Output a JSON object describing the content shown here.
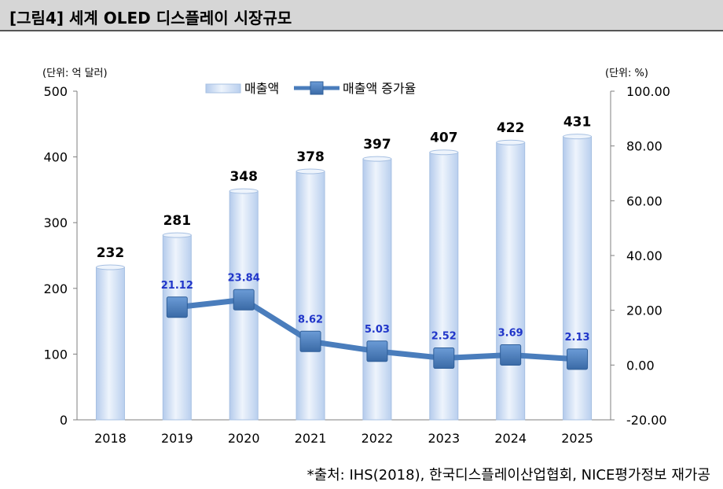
{
  "figure": {
    "title": "[그림4] 세계 OLED 디스플레이 시장규모",
    "source": "*출처: IHS(2018), 한국디스플레이산업협회, NICE평가정보 재가공"
  },
  "colors": {
    "bar_fill": "#c9dbf2",
    "bar_edge": "#a7c0e2",
    "line": "#4a7dbc",
    "marker": "#3f72b0",
    "label_blue": "#2035c9"
  },
  "chart_data": {
    "type": "bar",
    "categories": [
      "2018",
      "2019",
      "2020",
      "2021",
      "2022",
      "2023",
      "2024",
      "2025"
    ],
    "left_unit": "(단위: 억 달러)",
    "right_unit": "(단위: %)",
    "ylim": [
      0,
      500
    ],
    "y_ticks": [
      "0",
      "100",
      "200",
      "300",
      "400",
      "500"
    ],
    "y2lim": [
      -20,
      100
    ],
    "y2_ticks": [
      "-20.00",
      "0.00",
      "20.00",
      "40.00",
      "60.00",
      "80.00",
      "100.00"
    ],
    "legend": {
      "position": "top-center",
      "entries": [
        "매출액",
        "매출액 증가율"
      ]
    },
    "series": [
      {
        "name": "매출액",
        "type": "bar",
        "axis": "left",
        "values": [
          232,
          281,
          348,
          378,
          397,
          407,
          422,
          431
        ],
        "labels": [
          "232",
          "281",
          "348",
          "378",
          "397",
          "407",
          "422",
          "431"
        ]
      },
      {
        "name": "매출액 증가율",
        "type": "line",
        "axis": "right",
        "values": [
          null,
          21.12,
          23.84,
          8.62,
          5.03,
          2.52,
          3.69,
          2.13
        ],
        "labels": [
          "",
          "21.12",
          "23.84",
          "8.62",
          "5.03",
          "2.52",
          "3.69",
          "2.13"
        ]
      }
    ],
    "grid": false
  }
}
